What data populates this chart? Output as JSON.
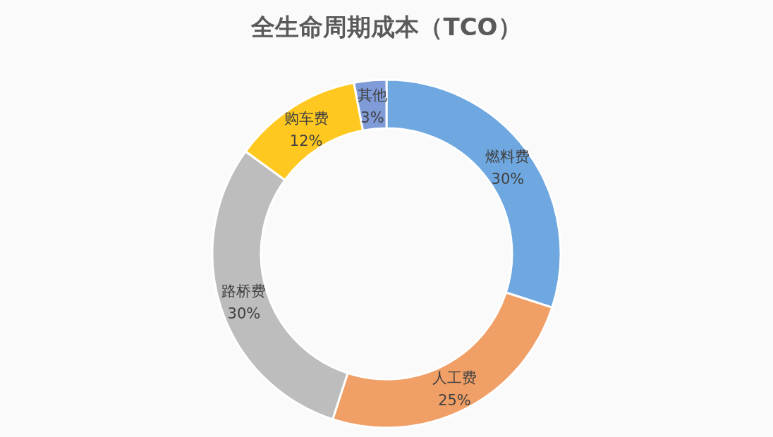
{
  "chart_data": {
    "type": "donut",
    "title": "全生命周期成本（TCO）",
    "legend": false,
    "categories": [
      "燃料费",
      "人工费",
      "路桥费",
      "购车费",
      "其他"
    ],
    "values": [
      30,
      25,
      30,
      12,
      3
    ],
    "value_labels": [
      "30%",
      "25%",
      "30%",
      "12%",
      "3%"
    ],
    "colors": [
      "#6fa8e0",
      "#f0a066",
      "#bdbdbd",
      "#ffc820",
      "#7f9bd8"
    ]
  }
}
